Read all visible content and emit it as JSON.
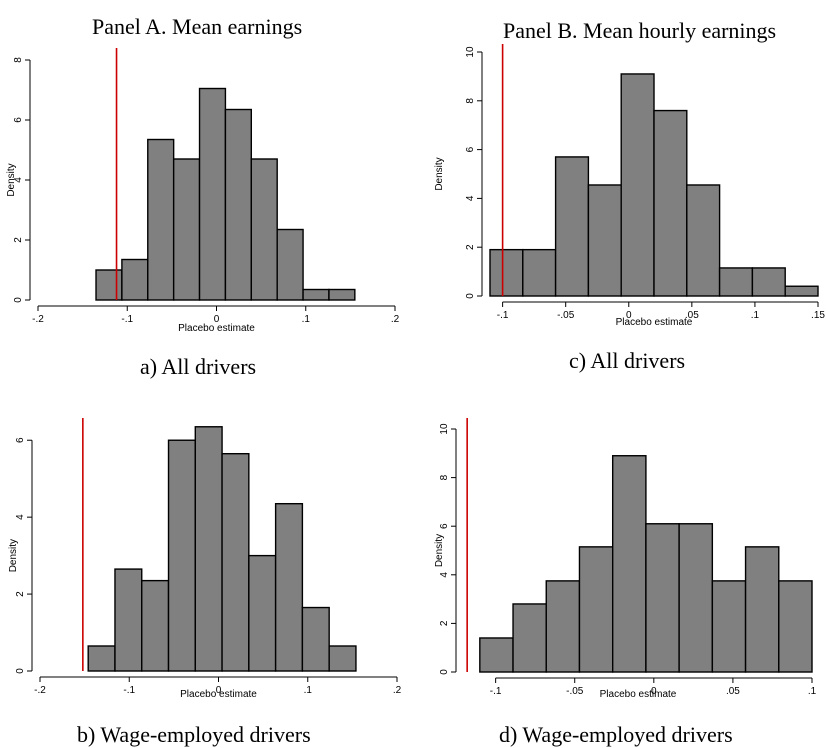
{
  "panel_titles": {
    "a": "Panel A. Mean earnings",
    "b": "Panel B. Mean hourly earnings"
  },
  "captions": {
    "a": "a) All drivers",
    "b": "b) Wage-employed drivers",
    "c": "c) All drivers",
    "d": "d) Wage-employed drivers"
  },
  "colors": {
    "bar_fill": "#808080",
    "bar_stroke": "#000000",
    "ref_line": "#cc0000"
  },
  "chart_data": [
    {
      "id": "a",
      "type": "bar",
      "xlabel": "Placebo estimate",
      "ylabel": "Density",
      "xlim": [
        -0.2,
        0.2
      ],
      "ylim": [
        0,
        8
      ],
      "xticks": [
        -0.2,
        -0.1,
        0,
        0.1,
        0.2
      ],
      "xtick_labels": [
        "-.2",
        "-.1",
        "0",
        ".1",
        ".2"
      ],
      "yticks": [
        0,
        2,
        4,
        6,
        8
      ],
      "ytick_labels": [
        "0",
        "2",
        "4",
        "6",
        "8"
      ],
      "bin_edges": [
        -0.135,
        -0.106,
        -0.077,
        -0.048,
        -0.019,
        0.01,
        0.039,
        0.068,
        0.097,
        0.126,
        0.155
      ],
      "values": [
        1.0,
        1.35,
        5.35,
        4.7,
        7.05,
        6.35,
        4.7,
        2.35,
        0.35,
        0.35
      ],
      "reference_line_x": -0.112,
      "grid": false
    },
    {
      "id": "b",
      "type": "bar",
      "xlabel": "Placebo estimate",
      "ylabel": "Density",
      "xlim": [
        -0.2,
        0.2
      ],
      "ylim": [
        0,
        6.5
      ],
      "xticks": [
        -0.2,
        -0.1,
        0,
        0.1,
        0.2
      ],
      "xtick_labels": [
        "-.2",
        "-.1",
        "0",
        ".1",
        ".2"
      ],
      "yticks": [
        0,
        2,
        4,
        6
      ],
      "ytick_labels": [
        "0",
        "2",
        "4",
        "6"
      ],
      "bin_edges": [
        -0.146,
        -0.116,
        -0.086,
        -0.056,
        -0.026,
        0.004,
        0.034,
        0.064,
        0.094,
        0.124,
        0.154
      ],
      "values": [
        0.65,
        2.65,
        2.35,
        6.0,
        6.35,
        5.65,
        3.0,
        4.35,
        1.65,
        0.65
      ],
      "reference_line_x": -0.152,
      "grid": false
    },
    {
      "id": "c",
      "type": "bar",
      "xlabel": "Placebo estimate",
      "ylabel": "Density",
      "xlim": [
        -0.11,
        0.15
      ],
      "ylim": [
        0,
        10
      ],
      "xticks": [
        -0.1,
        -0.05,
        0,
        0.05,
        0.1,
        0.15
      ],
      "xtick_labels": [
        "-.1",
        "-.05",
        "0",
        ".05",
        ".1",
        ".15"
      ],
      "yticks": [
        0,
        2,
        4,
        6,
        8,
        10
      ],
      "ytick_labels": [
        "0",
        "2",
        "4",
        "6",
        "8",
        "10"
      ],
      "bin_edges": [
        -0.11,
        -0.084,
        -0.058,
        -0.032,
        -0.006,
        0.02,
        0.046,
        0.072,
        0.098,
        0.124,
        0.15
      ],
      "values": [
        1.9,
        1.9,
        5.7,
        4.55,
        9.1,
        7.6,
        4.55,
        1.15,
        1.15,
        0.4
      ],
      "reference_line_x": -0.1,
      "grid": false
    },
    {
      "id": "d",
      "type": "bar",
      "xlabel": "Placebo estimate",
      "ylabel": "Density",
      "xlim": [
        -0.12,
        0.1
      ],
      "ylim": [
        0,
        10
      ],
      "xticks": [
        -0.1,
        -0.05,
        0,
        0.05,
        0.1
      ],
      "xtick_labels": [
        "-.1",
        "-.05",
        "0",
        ".05",
        ".1"
      ],
      "yticks": [
        0,
        2,
        4,
        6,
        8,
        10
      ],
      "ytick_labels": [
        "0",
        "2",
        "4",
        "6",
        "8",
        "10"
      ],
      "bin_edges": [
        -0.11,
        -0.089,
        -0.068,
        -0.047,
        -0.026,
        -0.005,
        0.016,
        0.037,
        0.058,
        0.079,
        0.1
      ],
      "values": [
        1.4,
        2.8,
        3.75,
        5.15,
        8.9,
        6.1,
        6.1,
        3.75,
        5.15,
        3.75
      ],
      "reference_line_x": -0.118,
      "grid": false
    }
  ]
}
